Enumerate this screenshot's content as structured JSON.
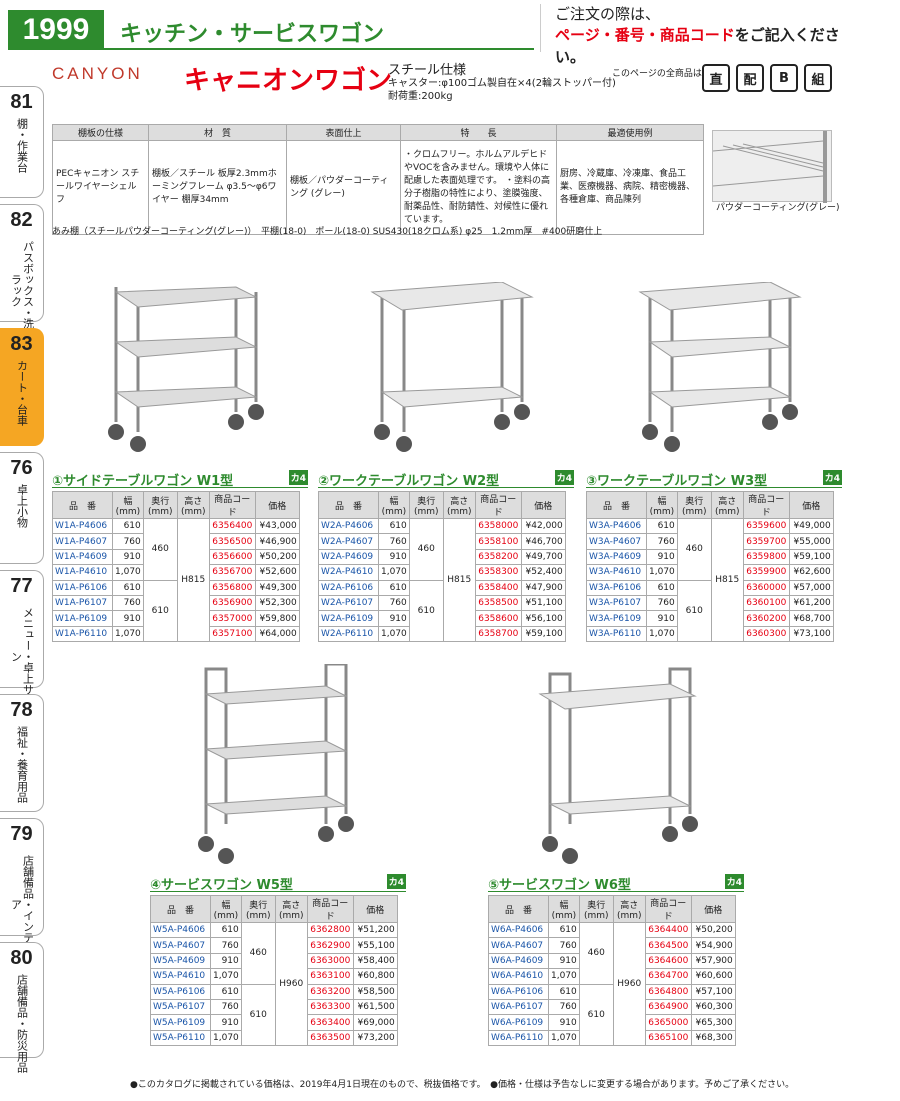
{
  "header": {
    "page_no": "1999",
    "title": "キッチン・サービスワゴン",
    "notice_line1": "ご注文の際は、",
    "notice_red": "ページ・番号・商品コード",
    "notice_rest": "をご記入ください。"
  },
  "tabs": [
    {
      "num": "81",
      "label": "棚・作業台"
    },
    {
      "num": "82",
      "label": "パスボックス・洗浄ラック"
    },
    {
      "num": "83",
      "label": "カート・台車"
    },
    {
      "num": "76",
      "label": "卓上小物"
    },
    {
      "num": "77",
      "label": "メニュー・卓上サイン"
    },
    {
      "num": "78",
      "label": "福祉・養育用品"
    },
    {
      "num": "79",
      "label": "店舗備品・インテリア"
    },
    {
      "num": "80",
      "label": "店舗備品・防災用品"
    }
  ],
  "product": {
    "brand": "CANYON",
    "name": "キャニオンワゴン",
    "spec1": "スチール仕様",
    "spec2": "キャスター:φ100ゴム製自在×4(2輪ストッパー付)",
    "spec3": "耐荷重:200kg",
    "all_note": "このページの全商品は",
    "icons": [
      "直",
      "配",
      "B",
      "組"
    ]
  },
  "spec_table": {
    "headers": [
      "棚板の仕様",
      "材　質",
      "表面仕上",
      "特　　長",
      "最適使用例"
    ],
    "c1": "PECキャニオン スチールワイヤーシェルフ",
    "c2": "棚板／スチール 板厚2.3mmホーミングフレーム φ3.5～φ6ワイヤー 棚厚34mm",
    "c3": "棚板／パウダーコーティング (グレー)",
    "c4": "・クロムフリー。ホルムアルデヒドやVOCを含みません。環境や人体に配慮した表面処理です。 ・塗料の高分子樹脂の特性により、塗膜強度、耐薬品性、耐防錆性、対候性に優れています。",
    "c5": "厨房、冷蔵庫、冷凍庫、食品工業、医療機器、病院、精密機器、各種倉庫、商品陳列"
  },
  "photo_caption": "パウダーコーティング(グレー)",
  "material_note": "あみ棚（スチールパウダーコーティング(グレー)）　平棚(18-0)　ポール(18-0) SUS430(18クロム系) φ25　1.2mm厚　#400研磨仕上",
  "col_headers": {
    "model": "品　番",
    "w": "幅(mm)",
    "d": "奥行(mm)",
    "h": "高さ(mm)",
    "code": "商品コード",
    "price": "価格"
  },
  "ka": "カ4",
  "sections": [
    {
      "title": "①サイドテーブルワゴン W1型",
      "h": "H815",
      "rows": [
        [
          "W1A-P4606",
          "610",
          "460",
          "6356400",
          "¥43,000"
        ],
        [
          "W1A-P4607",
          "760",
          "",
          "6356500",
          "¥46,900"
        ],
        [
          "W1A-P4609",
          "910",
          "",
          "6356600",
          "¥50,200"
        ],
        [
          "W1A-P4610",
          "1,070",
          "",
          "6356700",
          "¥52,600"
        ],
        [
          "W1A-P6106",
          "610",
          "610",
          "6356800",
          "¥49,300"
        ],
        [
          "W1A-P6107",
          "760",
          "",
          "6356900",
          "¥52,300"
        ],
        [
          "W1A-P6109",
          "910",
          "",
          "6357000",
          "¥59,800"
        ],
        [
          "W1A-P6110",
          "1,070",
          "",
          "6357100",
          "¥64,000"
        ]
      ]
    },
    {
      "title": "②ワークテーブルワゴン W2型",
      "h": "H815",
      "rows": [
        [
          "W2A-P4606",
          "610",
          "460",
          "6358000",
          "¥42,000"
        ],
        [
          "W2A-P4607",
          "760",
          "",
          "6358100",
          "¥46,700"
        ],
        [
          "W2A-P4609",
          "910",
          "",
          "6358200",
          "¥49,700"
        ],
        [
          "W2A-P4610",
          "1,070",
          "",
          "6358300",
          "¥52,400"
        ],
        [
          "W2A-P6106",
          "610",
          "610",
          "6358400",
          "¥47,900"
        ],
        [
          "W2A-P6107",
          "760",
          "",
          "6358500",
          "¥51,100"
        ],
        [
          "W2A-P6109",
          "910",
          "",
          "6358600",
          "¥56,100"
        ],
        [
          "W2A-P6110",
          "1,070",
          "",
          "6358700",
          "¥59,100"
        ]
      ]
    },
    {
      "title": "③ワークテーブルワゴン W3型",
      "h": "H815",
      "rows": [
        [
          "W3A-P4606",
          "610",
          "460",
          "6359600",
          "¥49,000"
        ],
        [
          "W3A-P4607",
          "760",
          "",
          "6359700",
          "¥55,000"
        ],
        [
          "W3A-P4609",
          "910",
          "",
          "6359800",
          "¥59,100"
        ],
        [
          "W3A-P4610",
          "1,070",
          "",
          "6359900",
          "¥62,600"
        ],
        [
          "W3A-P6106",
          "610",
          "610",
          "6360000",
          "¥57,000"
        ],
        [
          "W3A-P6107",
          "760",
          "",
          "6360100",
          "¥61,200"
        ],
        [
          "W3A-P6109",
          "910",
          "",
          "6360200",
          "¥68,700"
        ],
        [
          "W3A-P6110",
          "1,070",
          "",
          "6360300",
          "¥73,100"
        ]
      ]
    },
    {
      "title": "④サービスワゴン W5型",
      "h": "H960",
      "rows": [
        [
          "W5A-P4606",
          "610",
          "460",
          "6362800",
          "¥51,200"
        ],
        [
          "W5A-P4607",
          "760",
          "",
          "6362900",
          "¥55,100"
        ],
        [
          "W5A-P4609",
          "910",
          "",
          "6363000",
          "¥58,400"
        ],
        [
          "W5A-P4610",
          "1,070",
          "",
          "6363100",
          "¥60,800"
        ],
        [
          "W5A-P6106",
          "610",
          "610",
          "6363200",
          "¥58,500"
        ],
        [
          "W5A-P6107",
          "760",
          "",
          "6363300",
          "¥61,500"
        ],
        [
          "W5A-P6109",
          "910",
          "",
          "6363400",
          "¥69,000"
        ],
        [
          "W5A-P6110",
          "1,070",
          "",
          "6363500",
          "¥73,200"
        ]
      ]
    },
    {
      "title": "⑤サービスワゴン W6型",
      "h": "H960",
      "rows": [
        [
          "W6A-P4606",
          "610",
          "460",
          "6364400",
          "¥50,200"
        ],
        [
          "W6A-P4607",
          "760",
          "",
          "6364500",
          "¥54,900"
        ],
        [
          "W6A-P4609",
          "910",
          "",
          "6364600",
          "¥57,900"
        ],
        [
          "W6A-P4610",
          "1,070",
          "",
          "6364700",
          "¥60,600"
        ],
        [
          "W6A-P6106",
          "610",
          "610",
          "6364800",
          "¥57,100"
        ],
        [
          "W6A-P6107",
          "760",
          "",
          "6364900",
          "¥60,300"
        ],
        [
          "W6A-P6109",
          "910",
          "",
          "6365000",
          "¥65,300"
        ],
        [
          "W6A-P6110",
          "1,070",
          "",
          "6365100",
          "¥68,300"
        ]
      ]
    }
  ],
  "footer": "●このカタログに掲載されている価格は、2019年4月1日現在のもので、税抜価格です。　●価格・仕様は予告なしに変更する場合があります。予めご了承ください。"
}
